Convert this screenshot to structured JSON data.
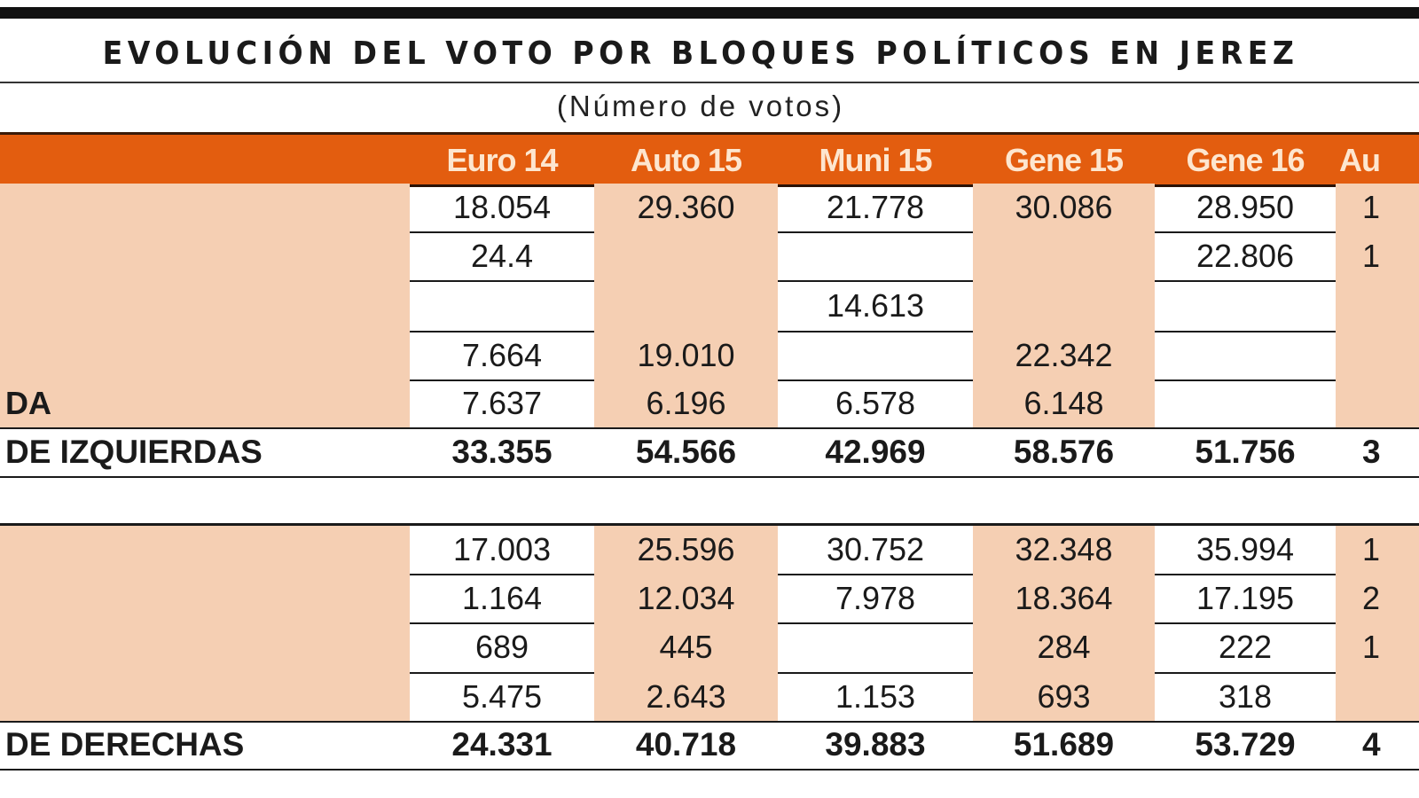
{
  "title": "EVOLUCIÓN DEL VOTO POR BLOQUES POLÍTICOS EN JEREZ",
  "subtitle": "(Número de votos)",
  "colors": {
    "header": "#e35d0f",
    "shade": "#f5cfb3",
    "header_text": "#fde6cf"
  },
  "columns": [
    "Euro 14",
    "Auto 15",
    "Muni 15",
    "Gene 15",
    "Gene 16",
    "Au"
  ],
  "rows": [
    {
      "label": "",
      "values": [
        "18.054",
        "29.360",
        "21.778",
        "30.086",
        "28.950",
        "1"
      ]
    },
    {
      "label": "",
      "values": [
        "24.4",
        "",
        "",
        "",
        "22.806",
        "1"
      ]
    },
    {
      "label": "",
      "values": [
        "",
        "",
        "14.613",
        "",
        "",
        ""
      ]
    },
    {
      "label": "",
      "values": [
        "7.664",
        "19.010",
        "",
        "22.342",
        "",
        ""
      ]
    },
    {
      "label": "DA",
      "values": [
        "7.637",
        "6.196",
        "6.578",
        "6.148",
        "",
        ""
      ]
    },
    {
      "label": "DE IZQUIERDAS",
      "total": true,
      "values": [
        "33.355",
        "54.566",
        "42.969",
        "58.576",
        "51.756",
        "3"
      ]
    },
    {
      "label": "",
      "values": [
        "17.003",
        "25.596",
        "30.752",
        "32.348",
        "35.994",
        "1"
      ]
    },
    {
      "label": "",
      "values": [
        "1.164",
        "12.034",
        "7.978",
        "18.364",
        "17.195",
        "2"
      ]
    },
    {
      "label": "",
      "values": [
        "689",
        "445",
        "",
        "284",
        "222",
        "1"
      ]
    },
    {
      "label": "",
      "values": [
        "5.475",
        "2.643",
        "1.153",
        "693",
        "318",
        ""
      ]
    },
    {
      "label": "DE DERECHAS",
      "total": true,
      "values": [
        "24.331",
        "40.718",
        "39.883",
        "51.689",
        "53.729",
        "4"
      ]
    }
  ]
}
